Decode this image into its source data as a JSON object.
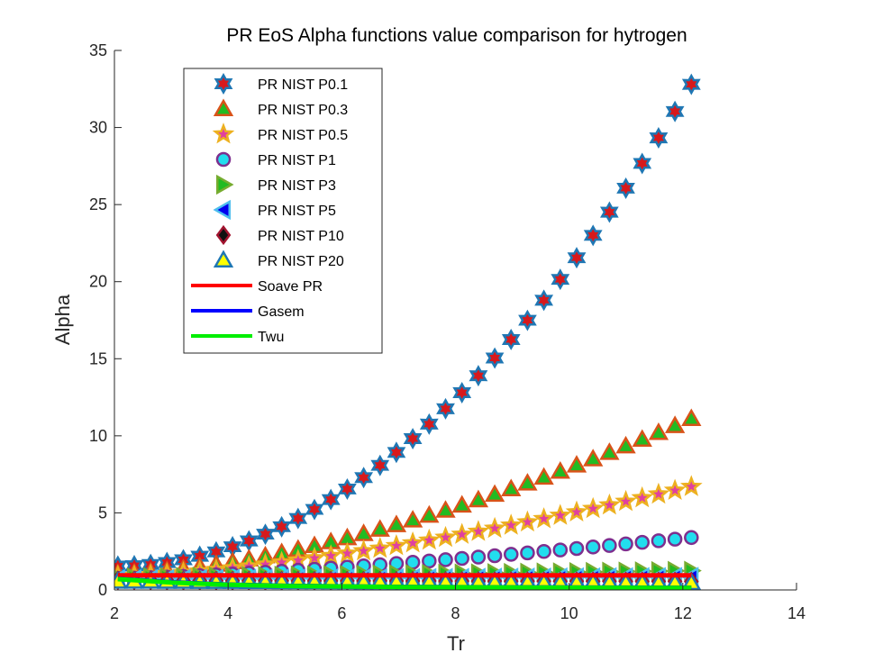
{
  "chart_data": {
    "type": "scatter",
    "title": "PR EoS Alpha functions value comparison for hytrogen",
    "xlabel": "Tr",
    "ylabel": "Alpha",
    "xlim": [
      2,
      14
    ],
    "ylim": [
      0,
      35
    ],
    "xticks": [
      2,
      4,
      6,
      8,
      10,
      12,
      14
    ],
    "yticks": [
      0,
      5,
      10,
      15,
      20,
      25,
      30,
      35
    ],
    "grid": false,
    "legend_position": "top-left",
    "x": {
      "start": 2.06,
      "end": 12.15,
      "count": 36
    },
    "series": [
      {
        "name": "PR NIST P0.1",
        "kind": "markers",
        "marker": "hexagram",
        "face": "#d7191c",
        "edge": "#1f77b4",
        "y_start": 1.55,
        "y_end": 32.8,
        "power": 2.0
      },
      {
        "name": "PR NIST P0.3",
        "kind": "markers",
        "marker": "triangle-up",
        "face": "#22bb22",
        "edge": "#d95319",
        "y_start": 1.05,
        "y_end": 11.1,
        "power": 1.6
      },
      {
        "name": "PR NIST P0.5",
        "kind": "markers",
        "marker": "pentagram",
        "face": "#e040a0",
        "edge": "#edb120",
        "y_start": 0.9,
        "y_end": 6.7,
        "power": 1.5
      },
      {
        "name": "PR NIST P1",
        "kind": "markers",
        "marker": "circle",
        "face": "#22ddee",
        "edge": "#7e2f8e",
        "y_start": 0.75,
        "y_end": 3.4,
        "power": 1.4
      },
      {
        "name": "PR NIST P3",
        "kind": "markers",
        "marker": "triangle-right",
        "face": "#22bb22",
        "edge": "#77ac30",
        "y_start": 0.8,
        "y_end": 1.25,
        "power": 1.0
      },
      {
        "name": "PR NIST P5",
        "kind": "markers",
        "marker": "triangle-left",
        "face": "#0000ee",
        "edge": "#4dbeee",
        "y_start": 0.7,
        "y_end": 0.85,
        "power": 1.0
      },
      {
        "name": "PR NIST P10",
        "kind": "markers",
        "marker": "diamond",
        "face": "#111111",
        "edge": "#a2142f",
        "y_start": 0.62,
        "y_end": 0.55,
        "power": 1.0
      },
      {
        "name": "PR NIST P20",
        "kind": "markers",
        "marker": "triangle-up",
        "face": "#ffff00",
        "edge": "#1f77b4",
        "y_start": 0.55,
        "y_end": 0.45,
        "power": 1.0
      },
      {
        "name": "Soave PR",
        "kind": "line",
        "color": "#ff0000",
        "points": [
          [
            2.06,
            0.95
          ],
          [
            12.15,
            0.95
          ]
        ]
      },
      {
        "name": "Gasem",
        "kind": "line",
        "color": "#0000ff",
        "points": [
          [
            2.06,
            0.72
          ],
          [
            3.0,
            0.5
          ],
          [
            4.0,
            0.35
          ],
          [
            5.0,
            0.27
          ],
          [
            7.0,
            0.2
          ],
          [
            9.0,
            0.17
          ],
          [
            12.15,
            0.14
          ]
        ]
      },
      {
        "name": "Twu",
        "kind": "line",
        "color": "#00ee00",
        "points": [
          [
            2.06,
            0.7
          ],
          [
            3.0,
            0.48
          ],
          [
            4.0,
            0.34
          ],
          [
            5.0,
            0.26
          ],
          [
            7.0,
            0.19
          ],
          [
            9.0,
            0.16
          ],
          [
            12.15,
            0.13
          ]
        ]
      }
    ]
  }
}
